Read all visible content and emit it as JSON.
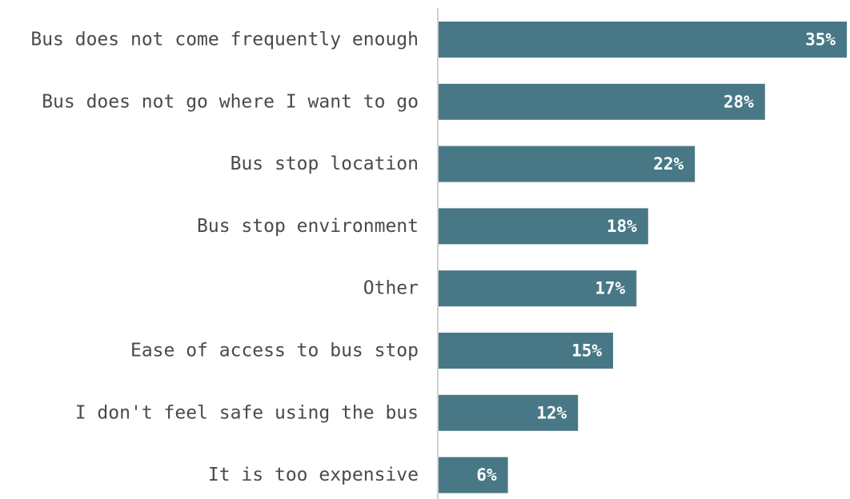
{
  "chart_data": {
    "type": "bar",
    "orientation": "horizontal",
    "categories": [
      "Bus does not come frequently enough",
      "Bus does not go where I want to go",
      "Bus stop location",
      "Bus stop environment",
      "Other",
      "Ease of access to bus stop",
      "I don't feel safe using the bus",
      "It is too expensive"
    ],
    "values": [
      35,
      28,
      22,
      18,
      17,
      15,
      12,
      6
    ],
    "value_labels": [
      "35%",
      "28%",
      "22%",
      "18%",
      "17%",
      "15%",
      "12%",
      "6%"
    ],
    "unit": "%",
    "xlim": [
      0,
      35
    ],
    "grid": false,
    "legend": "none",
    "colors": {
      "bar": "#487885",
      "axis": "#d0d0d0",
      "category_text": "#4a4a4a",
      "value_text": "#ffffff"
    }
  }
}
